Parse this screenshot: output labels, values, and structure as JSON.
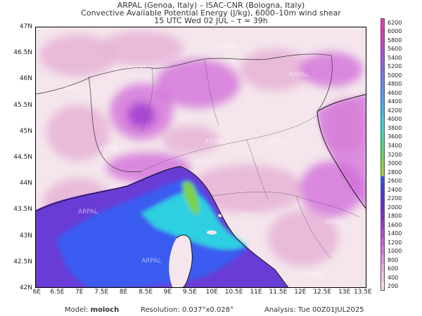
{
  "header": {
    "line1": "ARPAL (Genoa, Italy)  –  ISAC-CNR (Bologna, Italy)",
    "line2": "Convective Available Potential Energy (J/kg), 6000–10m wind shear",
    "line3": "15 UTC Wed 02 JUL  –  τ = 39h"
  },
  "map": {
    "lat_labels": [
      "47N",
      "46.5N",
      "46N",
      "45.5N",
      "45N",
      "44.5N",
      "44N",
      "43.5N",
      "43N",
      "42.5N",
      "42N"
    ],
    "lon_labels": [
      "6E",
      "6.5E",
      "7E",
      "7.5E",
      "8E",
      "8.5E",
      "9E",
      "9.5E",
      "10E",
      "10.5E",
      "11E",
      "11.5E",
      "12E",
      "12.5E",
      "13E",
      "13.5E"
    ],
    "lat_range": [
      42,
      47
    ],
    "lon_range": [
      6,
      13.5
    ],
    "watermark": "ARPAL",
    "colors": {
      "land_bg": "#f4e6ec",
      "sea_deep": "#6a3cd6",
      "sea_blue": "#3a5cf0",
      "sea_cyan": "#2ecfe0",
      "sea_green": "#7ad24a",
      "pink_light": "#e8b6d8",
      "magenta": "#d06ad8",
      "purple": "#a23cd0"
    }
  },
  "colorbar": {
    "levels": [
      "6200",
      "6000",
      "5800",
      "5600",
      "5400",
      "5200",
      "5000",
      "4800",
      "4600",
      "4400",
      "4200",
      "4000",
      "3800",
      "3600",
      "3400",
      "3200",
      "3000",
      "2800",
      "2600",
      "2400",
      "2200",
      "2000",
      "1800",
      "1600",
      "1400",
      "1200",
      "1000",
      "800",
      "600",
      "400",
      "200"
    ],
    "colors": [
      "#e040b0",
      "#d83aa8",
      "#cc44c0",
      "#b44ad0",
      "#9c56e0",
      "#8a64e8",
      "#7a74ee",
      "#6c84f0",
      "#5c96f0",
      "#4ea8ee",
      "#42bae6",
      "#3ecadc",
      "#3ed4c4",
      "#44d8a6",
      "#54d684",
      "#6ad468",
      "#84d052",
      "#a0cc46",
      "#3a4ce8",
      "#4a3ce0",
      "#5a30d8",
      "#6a2cd0",
      "#8030c8",
      "#9a3cc8",
      "#b24ccc",
      "#c660d2",
      "#d478da",
      "#de92e0",
      "#e6acde",
      "#ecc4e0",
      "#f4dcea"
    ]
  },
  "footer": {
    "model_label": "Model:",
    "model_value": "moloch",
    "resolution_label": "Resolution:",
    "resolution_value": "0.037°x0.028°",
    "analysis_label": "Analysis:",
    "analysis_value": "Tue 00Z01JUL2025"
  }
}
